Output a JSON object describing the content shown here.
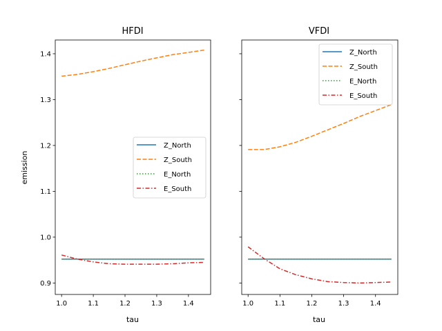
{
  "chart_data": [
    {
      "type": "line",
      "title": "HFDI",
      "xlabel": "tau",
      "ylabel": "emission",
      "xlim": [
        0.98,
        1.47
      ],
      "ylim": [
        0.875,
        1.43
      ],
      "xticks": [
        "1.0",
        "1.1",
        "1.2",
        "1.3",
        "1.4"
      ],
      "yticks": [
        "0.9",
        "1.0",
        "1.1",
        "1.2",
        "1.3",
        "1.4"
      ],
      "legend_position": "center-right",
      "x": [
        1.0,
        1.05,
        1.1,
        1.15,
        1.2,
        1.25,
        1.3,
        1.35,
        1.4,
        1.45
      ],
      "series": [
        {
          "name": "Z_North",
          "color": "#1f77b4",
          "style": "solid",
          "values": [
            0.952,
            0.952,
            0.952,
            0.952,
            0.952,
            0.952,
            0.952,
            0.952,
            0.952,
            0.952
          ]
        },
        {
          "name": "Z_South",
          "color": "#ff7f0e",
          "style": "dashed",
          "values": [
            1.351,
            1.355,
            1.361,
            1.368,
            1.376,
            1.384,
            1.391,
            1.398,
            1.403,
            1.408
          ]
        },
        {
          "name": "E_North",
          "color": "#2ca02c",
          "style": "dotted",
          "values": [
            0.952,
            0.952,
            0.952,
            0.952,
            0.952,
            0.952,
            0.952,
            0.952,
            0.952,
            0.952
          ]
        },
        {
          "name": "E_South",
          "color": "#d62728",
          "style": "dashdot",
          "values": [
            0.961,
            0.952,
            0.946,
            0.942,
            0.941,
            0.941,
            0.941,
            0.942,
            0.944,
            0.945
          ]
        }
      ]
    },
    {
      "type": "line",
      "title": "VFDI",
      "xlabel": "tau",
      "ylabel": "",
      "xlim": [
        0.98,
        1.47
      ],
      "ylim": [
        0.875,
        1.43
      ],
      "xticks": [
        "1.0",
        "1.1",
        "1.2",
        "1.3",
        "1.4"
      ],
      "yticks": [],
      "legend_position": "upper-right",
      "x": [
        1.0,
        1.05,
        1.1,
        1.15,
        1.2,
        1.25,
        1.3,
        1.35,
        1.4,
        1.45
      ],
      "series": [
        {
          "name": "Z_North",
          "color": "#1f77b4",
          "style": "solid",
          "values": [
            0.952,
            0.952,
            0.952,
            0.952,
            0.952,
            0.952,
            0.952,
            0.952,
            0.952,
            0.952
          ]
        },
        {
          "name": "Z_South",
          "color": "#ff7f0e",
          "style": "dashed",
          "values": [
            1.191,
            1.191,
            1.197,
            1.207,
            1.22,
            1.234,
            1.248,
            1.263,
            1.276,
            1.289
          ]
        },
        {
          "name": "E_North",
          "color": "#2ca02c",
          "style": "dotted",
          "values": [
            0.952,
            0.952,
            0.952,
            0.952,
            0.952,
            0.952,
            0.952,
            0.952,
            0.952,
            0.952
          ]
        },
        {
          "name": "E_South",
          "color": "#d62728",
          "style": "dashdot",
          "values": [
            0.979,
            0.953,
            0.931,
            0.918,
            0.909,
            0.903,
            0.901,
            0.9,
            0.901,
            0.902
          ]
        }
      ]
    }
  ]
}
